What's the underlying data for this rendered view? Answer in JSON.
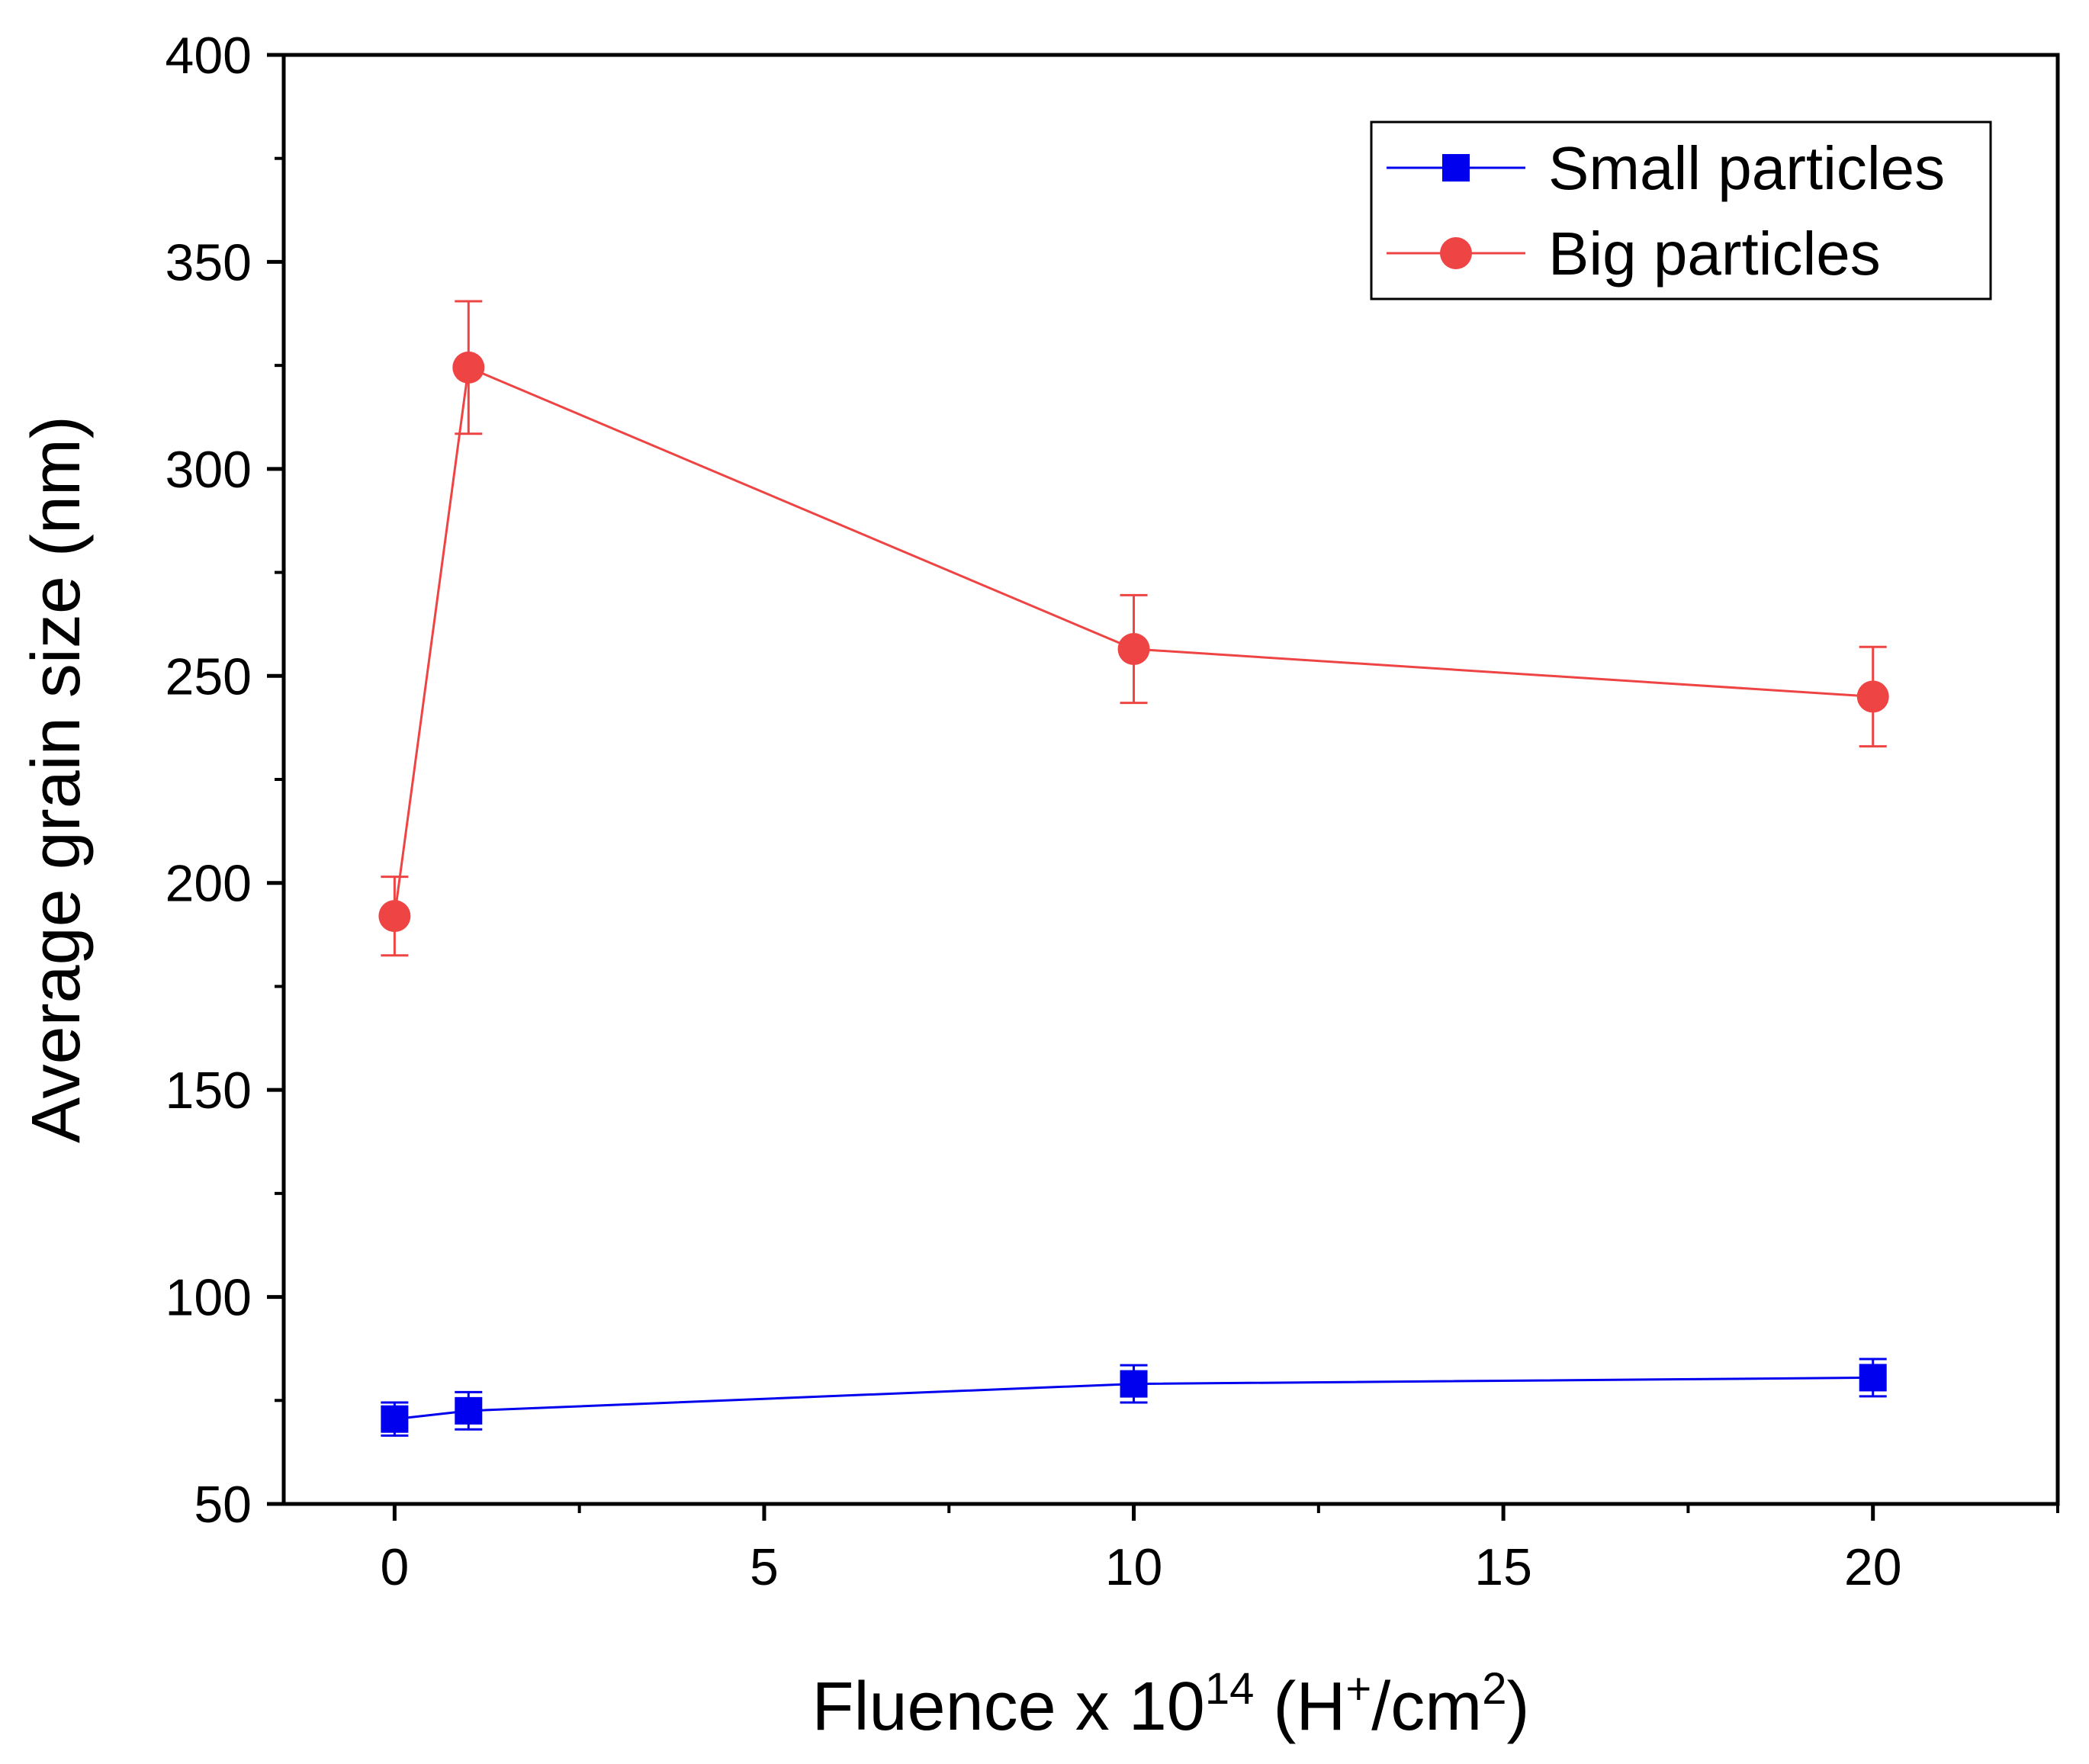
{
  "chart_data": {
    "type": "line",
    "title": "",
    "xlabel": {
      "base": "Fluence x 10",
      "exp": "14",
      "open": " (H",
      "ion": "+",
      "mid": "/cm",
      "sq": "2",
      "close": ")"
    },
    "ylabel": "Average grain size (nm)",
    "xlim": [
      -1.5,
      22.5
    ],
    "ylim": [
      50,
      400
    ],
    "x_ticks": [
      0,
      5,
      10,
      15,
      20
    ],
    "x_minor_ticks": [
      2.5,
      7.5,
      12.5,
      17.5,
      22.5
    ],
    "y_ticks": [
      50,
      100,
      150,
      200,
      250,
      300,
      350,
      400
    ],
    "y_minor_ticks": [
      75,
      125,
      175,
      225,
      275,
      325,
      375
    ],
    "legend_position": "top-right",
    "series": [
      {
        "name": "Small particles",
        "color": "#0000ee",
        "marker": "square",
        "points": [
          {
            "x": 0,
            "y": 70.5,
            "err": 4
          },
          {
            "x": 1,
            "y": 72.5,
            "err": 4.5
          },
          {
            "x": 10,
            "y": 79,
            "err": 4.5
          },
          {
            "x": 20,
            "y": 80.5,
            "err": 4.5
          }
        ]
      },
      {
        "name": "Big particles",
        "color": "#ee4444",
        "marker": "circle",
        "points": [
          {
            "x": 0,
            "y": 192,
            "err": 9.5
          },
          {
            "x": 1,
            "y": 324.5,
            "err": 16
          },
          {
            "x": 10,
            "y": 256.5,
            "err": 13
          },
          {
            "x": 20,
            "y": 245,
            "err": 12
          }
        ]
      }
    ]
  }
}
